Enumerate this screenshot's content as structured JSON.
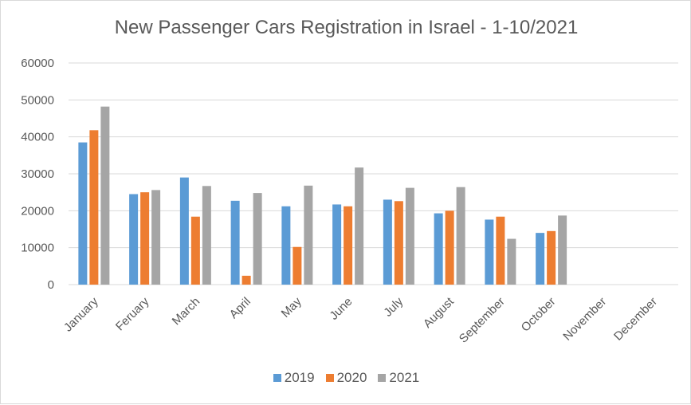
{
  "chart_data": {
    "type": "bar",
    "title": "New Passenger Cars Registration in Israel - 1-10/2021",
    "categories": [
      "January",
      "Feruary",
      "March",
      "April",
      "May",
      "June",
      "July",
      "August",
      "September",
      "October",
      "November",
      "December"
    ],
    "series": [
      {
        "name": "2019",
        "color": "#5b9bd5",
        "values": [
          38500,
          24500,
          29000,
          22700,
          21200,
          21700,
          23000,
          19300,
          17600,
          14000,
          null,
          null
        ]
      },
      {
        "name": "2020",
        "color": "#ed7d31",
        "values": [
          41800,
          25000,
          18400,
          2400,
          10200,
          21200,
          22600,
          20000,
          18400,
          14500,
          null,
          null
        ]
      },
      {
        "name": "2021",
        "color": "#a5a5a5",
        "values": [
          48200,
          25600,
          26700,
          24800,
          26800,
          31700,
          26200,
          26400,
          12400,
          18700,
          null,
          null
        ]
      }
    ],
    "y_ticks": [
      "0",
      "10000",
      "20000",
      "30000",
      "40000",
      "50000",
      "60000"
    ],
    "ylim": [
      0,
      60000
    ],
    "grid": true,
    "legend_position": "bottom"
  }
}
